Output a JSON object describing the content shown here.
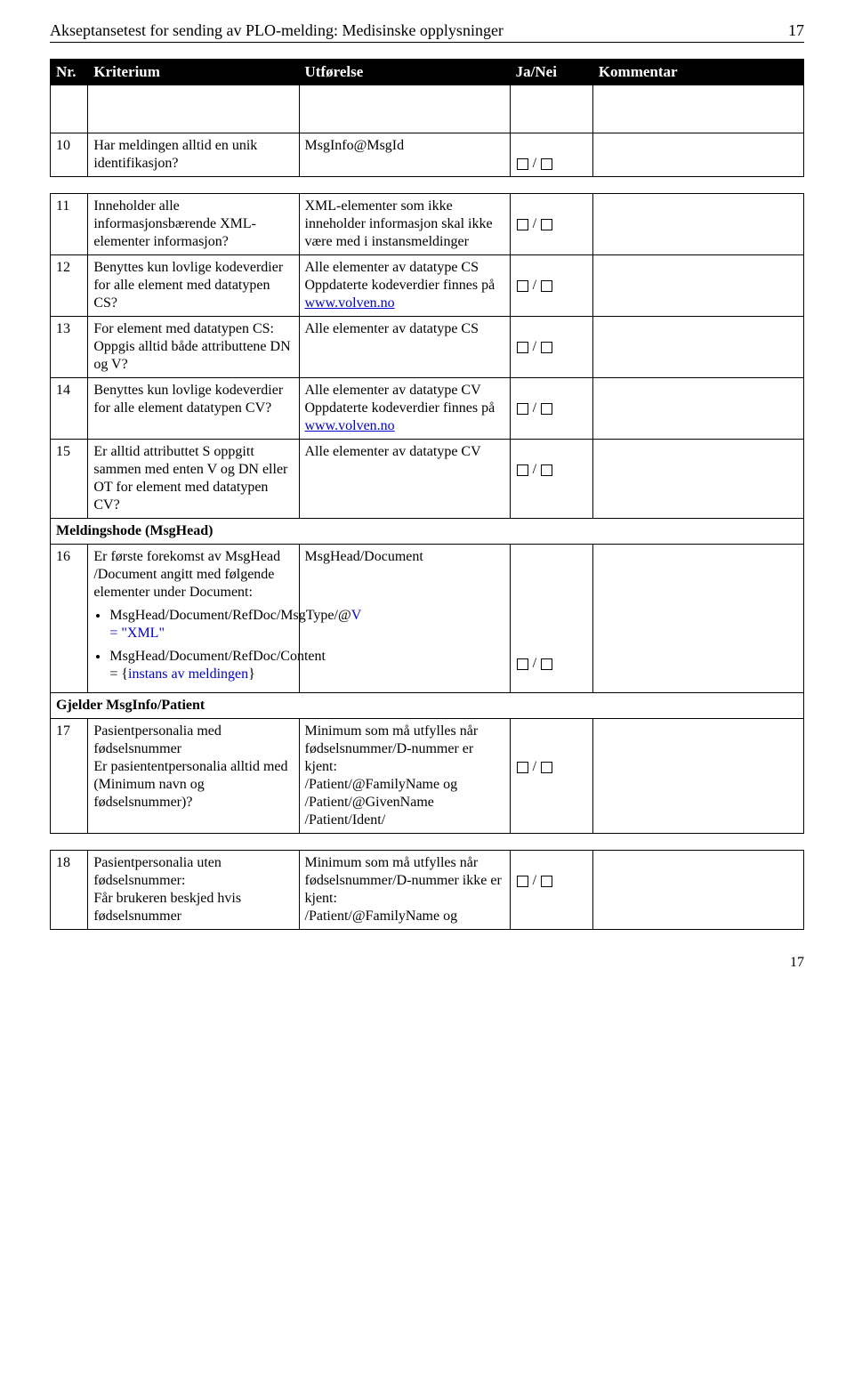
{
  "header": {
    "title": "Akseptansetest for sending av PLO-melding: Medisinske opplysninger",
    "pageno_top": "17"
  },
  "footer": {
    "pageno_bottom": "17"
  },
  "tableHeader": {
    "nr": "Nr.",
    "kriterium": "Kriterium",
    "utforelse": "Utførelse",
    "janei": "Ja/Nei",
    "kommentar": "Kommentar"
  },
  "rows1": [
    {
      "nr": "10",
      "kriterium": "Har meldingen alltid en unik identifikasjon?",
      "utforelse": "MsgInfo@MsgId",
      "checkpair": true
    }
  ],
  "rows2": [
    {
      "nr": "11",
      "kriterium": "Inneholder alle informasjonsbærende XML-elementer informasjon?",
      "utforelse": "XML-elementer som ikke inneholder informasjon skal ikke være med i instansmeldinger",
      "checkpair": true
    },
    {
      "nr": "12",
      "kriterium": "Benyttes kun lovlige kodeverdier for alle element med datatypen CS?",
      "utforelse_pre": "Alle elementer av datatype CS\nOppdaterte kodeverdier finnes på ",
      "utforelse_link": "www.volven.no",
      "checkpair": true
    },
    {
      "nr": "13",
      "kriterium": "For element med datatypen CS:\nOppgis alltid både attributtene DN og V?",
      "utforelse": "Alle elementer av datatype CS",
      "checkpair": true
    },
    {
      "nr": "14",
      "kriterium": "Benyttes kun lovlige kodeverdier for alle element datatypen CV?",
      "utforelse_pre": "Alle elementer av datatype CV\nOppdaterte kodeverdier finnes på ",
      "utforelse_link": "www.volven.no",
      "checkpair": true
    },
    {
      "nr": "15",
      "kriterium": "Er alltid attributtet S oppgitt sammen med enten V og DN eller OT for element med datatypen CV?",
      "utforelse": "Alle elementer av datatype CV",
      "checkpair": true
    }
  ],
  "section_msghead": "Meldingshode (MsgHead)",
  "row16": {
    "nr": "16",
    "kriterium_top": "Er første forekomst av MsgHead /Document angitt med følgende elementer under Document:",
    "bullet1_a": "MsgHead/Document/RefDoc/MsgType/@",
    "bullet1_b": "V = \"XML\"",
    "bullet2_a": "MsgHead/Document/RefDoc/Content = {",
    "bullet2_b": "instans av meldingen",
    "bullet2_c": "}",
    "utforelse": "MsgHead/Document",
    "checkpair": true
  },
  "section_patient": "Gjelder MsgInfo/Patient",
  "row17": {
    "nr": "17",
    "kriterium": "Pasientpersonalia med fødselsnummer\nEr pasiententpersonalia alltid med (Minimum navn og fødselsnummer)?",
    "utforelse": "Minimum som må utfylles når fødselsnummer/D-nummer er kjent:\n/Patient/@FamilyName og\n/Patient/@GivenName\n/Patient/Ident/",
    "checkpair": true
  },
  "row18": {
    "nr": "18",
    "kriterium": "Pasientpersonalia uten fødselsnummer:\nFår brukeren beskjed hvis fødselsnummer",
    "utforelse": "Minimum som må utfylles når fødselsnummer/D-nummer ikke er kjent:\n/Patient/@FamilyName og",
    "checkpair": true
  }
}
